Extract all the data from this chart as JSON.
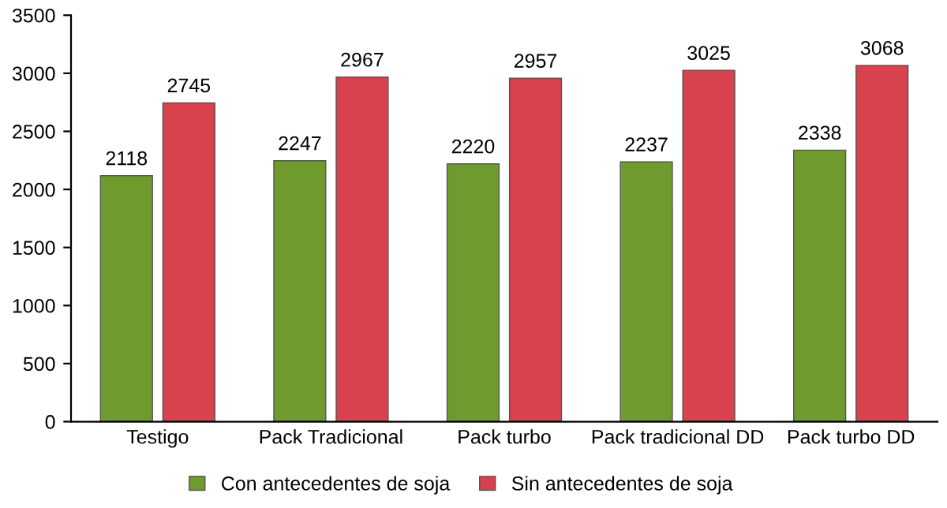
{
  "chart_data": {
    "type": "bar",
    "categories": [
      "Testigo",
      "Pack Tradicional",
      "Pack turbo",
      "Pack tradicional DD",
      "Pack turbo DD"
    ],
    "series": [
      {
        "name": "Con antecedentes de soja",
        "color": "#6f9a2e",
        "values": [
          2118,
          2247,
          2220,
          2237,
          2338
        ]
      },
      {
        "name": "Sin antecedentes de soja",
        "color": "#d8424c",
        "values": [
          2745,
          2967,
          2957,
          3025,
          3068
        ]
      }
    ],
    "ylim": [
      0,
      3500
    ],
    "yticks": [
      0,
      500,
      1000,
      1500,
      2000,
      2500,
      3000,
      3500
    ],
    "grid": false,
    "legend": "bottom",
    "data_labels": true
  }
}
